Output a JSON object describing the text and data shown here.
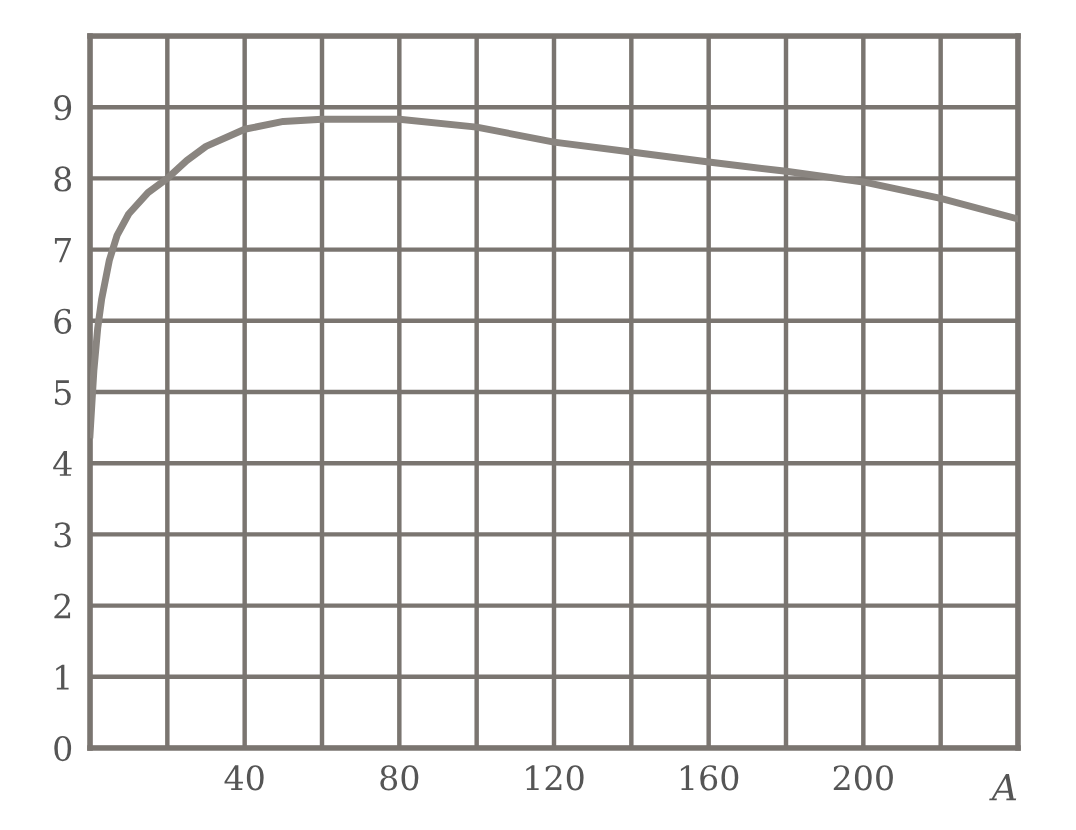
{
  "chart_data": {
    "type": "line",
    "xlabel": "A",
    "x": [
      0,
      1,
      2,
      3,
      5,
      7,
      10,
      15,
      20,
      25,
      30,
      40,
      50,
      60,
      80,
      100,
      120,
      140,
      160,
      180,
      200,
      220,
      240
    ],
    "series": [
      {
        "color": "#8a8580",
        "values": [
          4.4,
          5.3,
          5.9,
          6.3,
          6.85,
          7.2,
          7.5,
          7.8,
          8.0,
          8.25,
          8.45,
          8.69,
          8.8,
          8.83,
          8.83,
          8.72,
          8.51,
          8.37,
          8.23,
          8.1,
          7.95,
          7.72,
          7.43
        ]
      }
    ],
    "xlim": [
      0,
      240
    ],
    "ylim": [
      0,
      10
    ],
    "xticks": [
      {
        "value": 0,
        "label": null
      },
      {
        "value": 20,
        "label": null
      },
      40,
      {
        "value": 60,
        "label": null
      },
      80,
      {
        "value": 100,
        "label": null
      },
      120,
      {
        "value": 140,
        "label": null
      },
      160,
      {
        "value": 180,
        "label": null
      },
      200,
      {
        "value": 220,
        "label": null
      },
      {
        "value": 240,
        "label": null
      }
    ],
    "yticks": [
      0,
      1,
      2,
      3,
      4,
      5,
      6,
      7,
      8,
      9,
      {
        "value": 10,
        "label": null
      }
    ],
    "grid": true,
    "marker": "none",
    "line_style": "solid"
  }
}
